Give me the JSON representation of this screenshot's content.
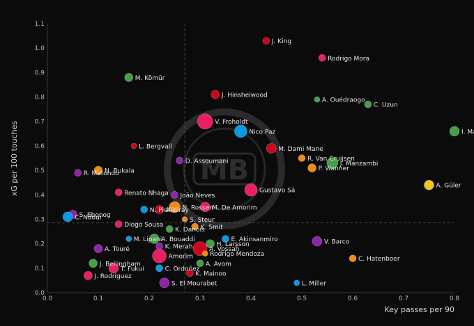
{
  "chart_data": {
    "type": "scatter",
    "title": "",
    "xlabel": "Key passes per 90",
    "ylabel": "xG per 100 touches",
    "xlim": [
      0.0,
      0.8
    ],
    "ylim": [
      0.0,
      1.1
    ],
    "xticks": [
      0.0,
      0.1,
      0.2,
      0.3,
      0.4,
      0.5,
      0.6,
      0.7,
      0.8
    ],
    "yticks": [
      0.0,
      0.1,
      0.2,
      0.3,
      0.4,
      0.5,
      0.6,
      0.7,
      0.8,
      0.9,
      1.0,
      1.1
    ],
    "xtick_labels": [
      "0.0",
      "0.1",
      "0.2",
      "0.3",
      "0.4",
      "0.5",
      "0.6",
      "0.7",
      "0.8"
    ],
    "ytick_labels": [
      "0.0",
      "0.1",
      "0.2",
      "0.3",
      "0.4",
      "0.5",
      "0.6",
      "0.7",
      "0.8",
      "0.9",
      "1.0",
      "1.1"
    ],
    "grid": false,
    "reference_lines": {
      "x": 0.27,
      "y": 0.285
    },
    "watermark": "MB",
    "points": [
      {
        "label": "J. King",
        "x": 0.43,
        "y": 1.03,
        "size": 5,
        "color": "#d0021b"
      },
      {
        "label": "Rodrigo Mora",
        "x": 0.54,
        "y": 0.96,
        "size": 5,
        "color": "#e91e63"
      },
      {
        "label": "M. Kõmür",
        "x": 0.16,
        "y": 0.88,
        "size": 6,
        "color": "#43a047"
      },
      {
        "label": "J. Hinshelwood",
        "x": 0.33,
        "y": 0.81,
        "size": 6,
        "color": "#d0021b"
      },
      {
        "label": "A. Ouédraogo",
        "x": 0.53,
        "y": 0.79,
        "size": 4,
        "color": "#43a047"
      },
      {
        "label": "C. Uzun",
        "x": 0.63,
        "y": 0.77,
        "size": 5,
        "color": "#43a047"
      },
      {
        "label": "V. Froholdt",
        "x": 0.31,
        "y": 0.7,
        "size": 11,
        "color": "#e91e63"
      },
      {
        "label": "Nico Paz",
        "x": 0.38,
        "y": 0.66,
        "size": 9,
        "color": "#039be5"
      },
      {
        "label": "I. Maza",
        "x": 0.8,
        "y": 0.66,
        "size": 7,
        "color": "#43a047"
      },
      {
        "label": "L. Bergvall",
        "x": 0.17,
        "y": 0.6,
        "size": 4,
        "color": "#d0021b"
      },
      {
        "label": "M. Dami Mane",
        "x": 0.44,
        "y": 0.59,
        "size": 7,
        "color": "#d0021b"
      },
      {
        "label": "D. Assoumani",
        "x": 0.26,
        "y": 0.54,
        "size": 5,
        "color": "#8e24aa"
      },
      {
        "label": "R. Van Cruijsen",
        "x": 0.5,
        "y": 0.55,
        "size": 5,
        "color": "#ef8b17"
      },
      {
        "label": "J. Manzambi",
        "x": 0.56,
        "y": 0.53,
        "size": 8,
        "color": "#43a047"
      },
      {
        "label": "P. Wanner",
        "x": 0.52,
        "y": 0.51,
        "size": 6,
        "color": "#ef8b17"
      },
      {
        "label": "N. Bukala",
        "x": 0.1,
        "y": 0.5,
        "size": 6,
        "color": "#ef8b17"
      },
      {
        "label": "R. Matondo",
        "x": 0.06,
        "y": 0.49,
        "size": 5,
        "color": "#8e24aa"
      },
      {
        "label": "A. Güler",
        "x": 0.75,
        "y": 0.44,
        "size": 7,
        "color": "#f0c419"
      },
      {
        "label": "Gustavo Sá",
        "x": 0.4,
        "y": 0.42,
        "size": 9,
        "color": "#e91e63"
      },
      {
        "label": "Renato Nhaga",
        "x": 0.14,
        "y": 0.41,
        "size": 5,
        "color": "#e91e63"
      },
      {
        "label": "João Neves",
        "x": 0.25,
        "y": 0.4,
        "size": 5,
        "color": "#8e24aa"
      },
      {
        "label": "N. Pisilli",
        "x": 0.19,
        "y": 0.34,
        "size": 5,
        "color": "#039be5"
      },
      {
        "label": "A. Gray",
        "x": 0.22,
        "y": 0.34,
        "size": 6,
        "color": "#d0021b"
      },
      {
        "label": "N. Rossen",
        "x": 0.25,
        "y": 0.35,
        "size": 8,
        "color": "#ef8b17"
      },
      {
        "label": "M. De Amorim",
        "x": 0.31,
        "y": 0.35,
        "size": 7,
        "color": "#e91e63"
      },
      {
        "label": "S. Ebonog",
        "x": 0.05,
        "y": 0.32,
        "size": 6,
        "color": "#8e24aa"
      },
      {
        "label": "C. Ndour",
        "x": 0.04,
        "y": 0.31,
        "size": 7,
        "color": "#039be5"
      },
      {
        "label": "S. Steur",
        "x": 0.27,
        "y": 0.3,
        "size": 4,
        "color": "#ef8b17"
      },
      {
        "label": "Diogo Sousa",
        "x": 0.14,
        "y": 0.28,
        "size": 5,
        "color": "#e91e63"
      },
      {
        "label": "K. Smit",
        "x": 0.29,
        "y": 0.27,
        "size": 5,
        "color": "#ef8b17"
      },
      {
        "label": "K. Danois",
        "x": 0.24,
        "y": 0.26,
        "size": 5,
        "color": "#43a047"
      },
      {
        "label": "M. Lipani",
        "x": 0.16,
        "y": 0.22,
        "size": 4,
        "color": "#039be5"
      },
      {
        "label": "A. Bouaddi",
        "x": 0.21,
        "y": 0.22,
        "size": 7,
        "color": "#43a047"
      },
      {
        "label": "E. Akinsanmiro",
        "x": 0.35,
        "y": 0.22,
        "size": 5,
        "color": "#039be5"
      },
      {
        "label": "H. Larsson",
        "x": 0.32,
        "y": 0.2,
        "size": 6,
        "color": "#43a047"
      },
      {
        "label": "K. Merah",
        "x": 0.22,
        "y": 0.19,
        "size": 5,
        "color": "#8e24aa"
      },
      {
        "label": "V. Barco",
        "x": 0.53,
        "y": 0.21,
        "size": 7,
        "color": "#8e24aa"
      },
      {
        "label": "A. Touré",
        "x": 0.1,
        "y": 0.18,
        "size": 6,
        "color": "#8e24aa"
      },
      {
        "label": "A. Vossah",
        "x": 0.3,
        "y": 0.18,
        "size": 10,
        "color": "#d0021b"
      },
      {
        "label": "Rodrigo Mendoza",
        "x": 0.31,
        "y": 0.16,
        "size": 4,
        "color": "#ef8b17"
      },
      {
        "label": "Amorim",
        "x": 0.22,
        "y": 0.15,
        "size": 10,
        "color": "#e91e63"
      },
      {
        "label": "C. Hatenboer",
        "x": 0.6,
        "y": 0.14,
        "size": 5,
        "color": "#ef8b17"
      },
      {
        "label": "A. Avom",
        "x": 0.3,
        "y": 0.12,
        "size": 5,
        "color": "#43a047"
      },
      {
        "label": "J. Bellingham",
        "x": 0.09,
        "y": 0.12,
        "size": 6,
        "color": "#43a047"
      },
      {
        "label": "J. Rodriguez",
        "x": 0.08,
        "y": 0.07,
        "size": 6,
        "color": "#e91e63"
      },
      {
        "label": "T. Fukui",
        "x": 0.13,
        "y": 0.1,
        "size": 7,
        "color": "#e91e63"
      },
      {
        "label": "C. Ordoñez",
        "x": 0.22,
        "y": 0.1,
        "size": 5,
        "color": "#039be5"
      },
      {
        "label": "K. Mainoo",
        "x": 0.28,
        "y": 0.08,
        "size": 5,
        "color": "#d0021b"
      },
      {
        "label": "S. El Mourabet",
        "x": 0.23,
        "y": 0.04,
        "size": 7,
        "color": "#8e24aa"
      },
      {
        "label": "L. Miller",
        "x": 0.49,
        "y": 0.04,
        "size": 4,
        "color": "#039be5"
      }
    ]
  }
}
